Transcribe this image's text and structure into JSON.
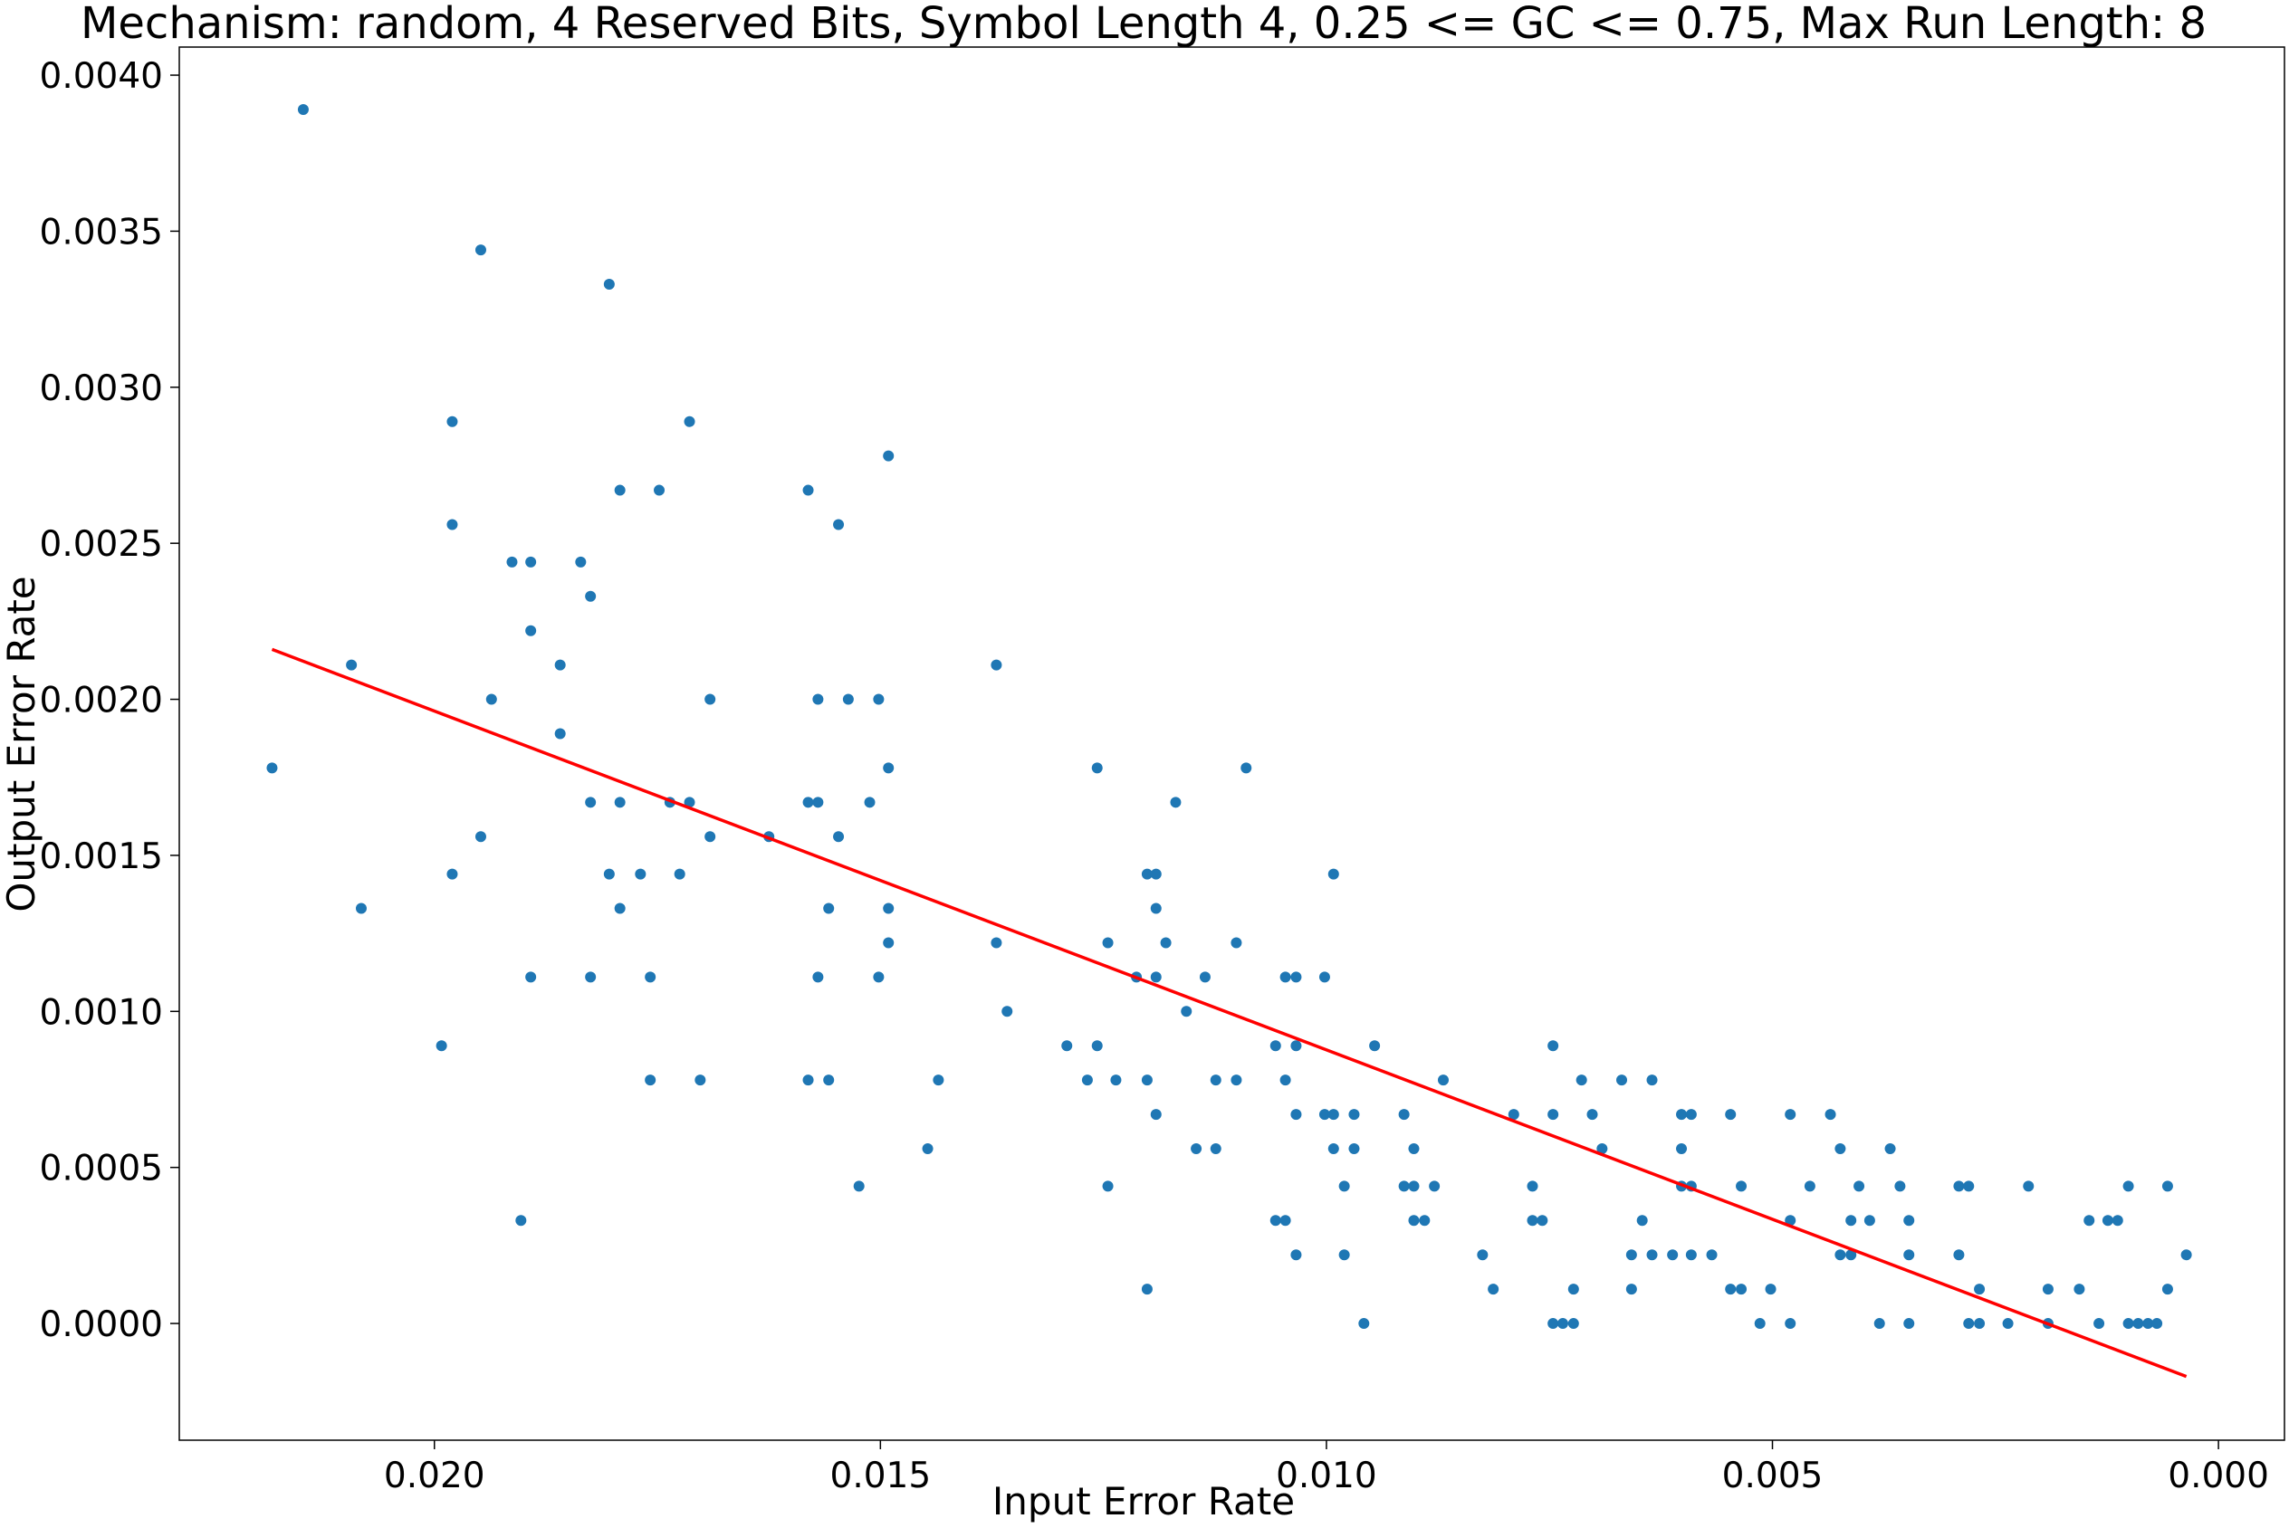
{
  "chart_data": {
    "type": "scatter",
    "title": "Mechanism: random, 4 Reserved Bits, Symbol Length 4, 0.25 <= GC <= 0.75, Max Run Length: 8",
    "x_label": "Input Error Rate",
    "y_label": "Output Error Rate",
    "xlim": [
      0.02286,
      -0.00074
    ],
    "ylim": [
      -0.000374,
      0.00409
    ],
    "xticks": [
      {
        "value": 0.02,
        "label": "0.020"
      },
      {
        "value": 0.015,
        "label": "0.015"
      },
      {
        "value": 0.01,
        "label": "0.010"
      },
      {
        "value": 0.005,
        "label": "0.005"
      },
      {
        "value": 0,
        "label": "0.000"
      }
    ],
    "yticks": [
      {
        "value": 0,
        "label": "0.0000"
      },
      {
        "value": 0.0005,
        "label": "0.0005"
      },
      {
        "value": 0.001,
        "label": "0.0010"
      },
      {
        "value": 0.0015,
        "label": "0.0015"
      },
      {
        "value": 0.002,
        "label": "0.0020"
      },
      {
        "value": 0.0025,
        "label": "0.0025"
      },
      {
        "value": 0.003,
        "label": "0.0030"
      },
      {
        "value": 0.0035,
        "label": "0.0035"
      },
      {
        "value": 0.004,
        "label": "0.0040"
      }
    ],
    "grid": false,
    "series": [
      {
        "type": "scatter",
        "color": "#1f77b4",
        "x": [
          0.02182,
          0.02147,
          0.02093,
          0.02082,
          0.01992,
          0.0198,
          0.0198,
          0.0198,
          0.01948,
          0.01948,
          0.01936,
          0.01913,
          0.01903,
          0.01892,
          0.01892,
          0.01892,
          0.01859,
          0.01859,
          0.01836,
          0.01825,
          0.01825,
          0.01825,
          0.01804,
          0.01804,
          0.01792,
          0.01792,
          0.01792,
          0.01769,
          0.01758,
          0.01758,
          0.01748,
          0.01736,
          0.01725,
          0.01714,
          0.01714,
          0.01702,
          0.01691,
          0.01691,
          0.01625,
          0.01581,
          0.01581,
          0.01581,
          0.0157,
          0.0157,
          0.0157,
          0.01558,
          0.01558,
          0.01547,
          0.01547,
          0.01536,
          0.01524,
          0.01512,
          0.01502,
          0.01502,
          0.01491,
          0.01491,
          0.01491,
          0.01491,
          0.01447,
          0.01435,
          0.0137,
          0.0137,
          0.01358,
          0.01291,
          0.01268,
          0.01257,
          0.01257,
          0.01245,
          0.01245,
          0.01236,
          0.01213,
          0.01201,
          0.01201,
          0.01201,
          0.01191,
          0.01191,
          0.01191,
          0.01191,
          0.0118,
          0.01169,
          0.01157,
          0.01146,
          0.01136,
          0.01124,
          0.01124,
          0.01101,
          0.01101,
          0.0109,
          0.01057,
          0.01057,
          0.01046,
          0.01046,
          0.01046,
          0.01034,
          0.01034,
          0.01034,
          0.01034,
          0.01002,
          0.01002,
          0.00992,
          0.00992,
          0.00992,
          0.0098,
          0.0098,
          0.00969,
          0.00969,
          0.00958,
          0.00946,
          0.00913,
          0.00913,
          0.00902,
          0.00902,
          0.00902,
          0.0089,
          0.00879,
          0.00869,
          0.00825,
          0.00813,
          0.0079,
          0.00769,
          0.00769,
          0.00758,
          0.00746,
          0.00746,
          0.00746,
          0.00735,
          0.00723,
          0.00723,
          0.00714,
          0.00702,
          0.00691,
          0.00669,
          0.00658,
          0.00658,
          0.00646,
          0.00635,
          0.00635,
          0.00612,
          0.00602,
          0.00602,
          0.00602,
          0.00591,
          0.00591,
          0.00591,
          0.00568,
          0.00547,
          0.00547,
          0.00535,
          0.00535,
          0.00514,
          0.00502,
          0.0048,
          0.0048,
          0.0048,
          0.00458,
          0.00435,
          0.00424,
          0.00424,
          0.00412,
          0.00412,
          0.00403,
          0.00391,
          0.0038,
          0.00368,
          0.00357,
          0.00347,
          0.00347,
          0.00347,
          0.00291,
          0.00291,
          0.0028,
          0.0028,
          0.00268,
          0.00268,
          0.00236,
          0.00213,
          0.00191,
          0.00191,
          0.00156,
          0.00145,
          0.00134,
          0.00124,
          0.00113,
          0.00101,
          0.00101,
          0.0009,
          0.00079,
          0.00069,
          0.00057,
          0.00057,
          0.00036
        ],
        "values": [
          0.00178,
          0.00389,
          0.00211,
          0.00133,
          0.00089,
          0.00289,
          0.00256,
          0.00144,
          0.00344,
          0.00156,
          0.002,
          0.00244,
          0.00033,
          0.00244,
          0.00222,
          0.00111,
          0.00211,
          0.00189,
          0.00244,
          0.00233,
          0.00167,
          0.00111,
          0.00333,
          0.00144,
          0.00267,
          0.00167,
          0.00133,
          0.00144,
          0.00111,
          0.00078,
          0.00267,
          0.00167,
          0.00144,
          0.00289,
          0.00167,
          0.00078,
          0.002,
          0.00156,
          0.00156,
          0.00267,
          0.00167,
          0.00078,
          0.002,
          0.00167,
          0.00111,
          0.00133,
          0.00078,
          0.00256,
          0.00156,
          0.002,
          0.00044,
          0.00167,
          0.002,
          0.00111,
          0.00278,
          0.00178,
          0.00133,
          0.00122,
          0.00056,
          0.00078,
          0.00211,
          0.00122,
          0.001,
          0.00089,
          0.00078,
          0.00178,
          0.00089,
          0.00122,
          0.00044,
          0.00078,
          0.00111,
          0.00144,
          0.00078,
          0.00011,
          0.00144,
          0.00133,
          0.00111,
          0.00067,
          0.00122,
          0.00167,
          0.001,
          0.00056,
          0.00111,
          0.00078,
          0.00056,
          0.00122,
          0.00078,
          0.00178,
          0.00089,
          0.00033,
          0.00111,
          0.00078,
          0.00033,
          0.00111,
          0.00089,
          0.00067,
          0.00022,
          0.00111,
          0.00067,
          0.00144,
          0.00067,
          0.00056,
          0.00044,
          0.00022,
          0.00067,
          0.00056,
          0,
          0.00089,
          0.00067,
          0.00044,
          0.00056,
          0.00044,
          0.00033,
          0.00033,
          0.00044,
          0.00078,
          0.00022,
          0.00011,
          0.00067,
          0.00044,
          0.00033,
          0.00033,
          0.00089,
          0.00067,
          0,
          0,
          0.00011,
          0,
          0.00078,
          0.00067,
          0.00056,
          0.00078,
          0.00022,
          0.00011,
          0.00033,
          0.00078,
          0.00022,
          0.00022,
          0.00067,
          0.00056,
          0.00044,
          0.00067,
          0.00044,
          0.00022,
          0.00022,
          0.00067,
          0.00011,
          0.00044,
          0.00011,
          0,
          0.00011,
          0.00067,
          0.00033,
          0,
          0.00044,
          0.00067,
          0.00056,
          0.00022,
          0.00033,
          0.00022,
          0.00044,
          0.00033,
          0,
          0.00056,
          0.00044,
          0.00033,
          0.00022,
          0,
          0.00044,
          0.00022,
          0.00044,
          0,
          0.00011,
          0,
          0,
          0.00044,
          0.00011,
          0,
          0.00011,
          0.00033,
          0,
          0.00033,
          0.00033,
          0.00044,
          0,
          0,
          0,
          0,
          0.00044,
          0.00011,
          0.00022
        ]
      },
      {
        "type": "line",
        "color": "#ff0000",
        "x": [
          0.02182,
          0.00036
        ],
        "values": [
          0.00216,
          -0.00017
        ]
      }
    ]
  }
}
